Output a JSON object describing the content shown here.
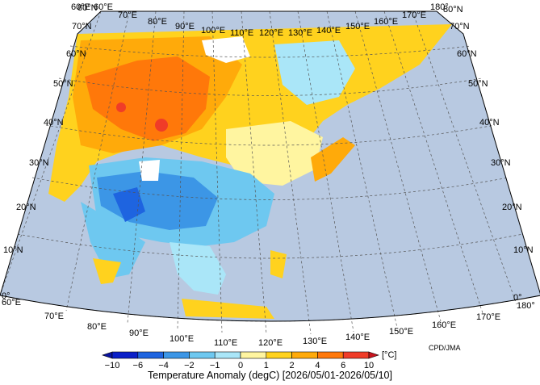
{
  "title": "Temperature Anomaly (degC) [2026/05/01-2026/05/10]",
  "credit": "CPD/JMA",
  "unit_label": "[°C]",
  "longitude_labels": [
    "60°E",
    "70°E",
    "80°E",
    "90°E",
    "100°E",
    "110°E",
    "120°E",
    "130°E",
    "140°E",
    "150°E",
    "160°E",
    "170°E",
    "180°"
  ],
  "latitude_labels": [
    "0°",
    "10°N",
    "20°N",
    "30°N",
    "40°N",
    "50°N",
    "60°N",
    "70°N",
    "80°N"
  ],
  "colorbar": {
    "ticks": [
      "−10",
      "−6",
      "−4",
      "−2",
      "−1",
      "0",
      "1",
      "2",
      "4",
      "6",
      "10"
    ],
    "colors": [
      "#0a1fc8",
      "#1e64e0",
      "#3c96e6",
      "#6ec8f0",
      "#aae6f8",
      "#fff5a0",
      "#ffd21e",
      "#ffaa0a",
      "#ff780a",
      "#f03c28"
    ],
    "under_color": "#0a14a0",
    "over_color": "#c8141e"
  },
  "colors": {
    "ocean": "#b8c9e1",
    "no_data": "#ffffff"
  }
}
